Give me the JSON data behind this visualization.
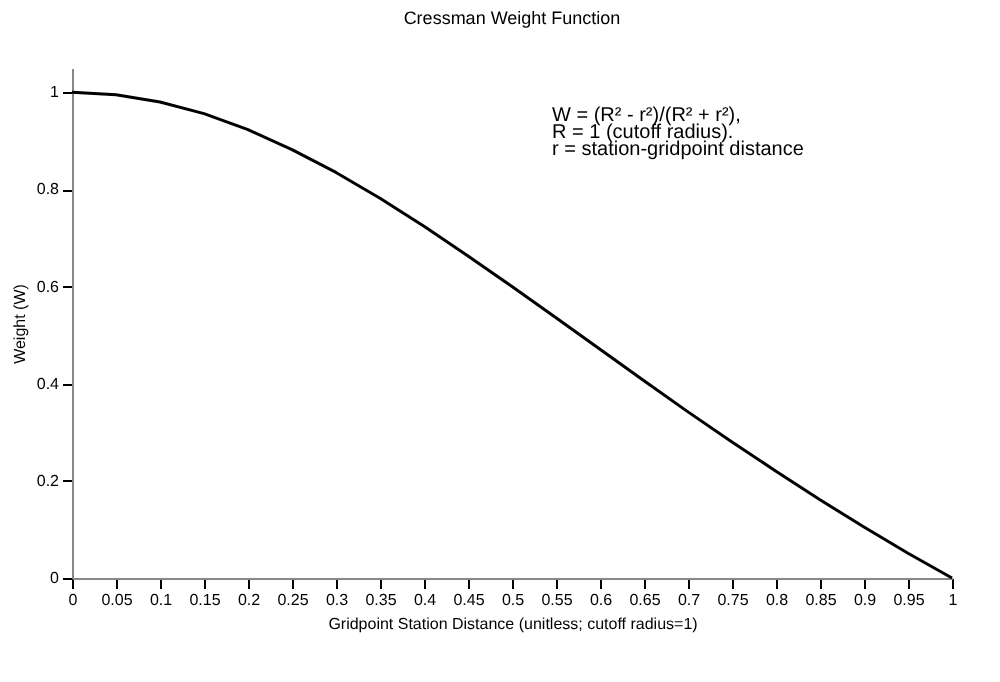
{
  "chart_data": {
    "type": "line",
    "title": "Cressman Weight Function",
    "xlabel": "Gridpoint Station Distance (unitless; cutoff radius=1)",
    "ylabel": "Weight (W)",
    "annotations": [
      "W = (R² - r²)/(R² + r²),",
      "R = 1 (cutoff radius).",
      "r = station-gridpoint distance"
    ],
    "x": [
      0,
      0.05,
      0.1,
      0.15,
      0.2,
      0.25,
      0.3,
      0.35,
      0.4,
      0.45,
      0.5,
      0.55,
      0.6,
      0.65,
      0.7,
      0.75,
      0.8,
      0.85,
      0.9,
      0.95,
      1
    ],
    "series": [
      {
        "color": "#000000",
        "values": [
          1,
          0.995,
          0.98,
          0.956,
          0.923,
          0.882,
          0.835,
          0.782,
          0.724,
          0.663,
          0.6,
          0.536,
          0.471,
          0.406,
          0.342,
          0.28,
          0.22,
          0.161,
          0.105,
          0.051,
          0
        ]
      }
    ],
    "xlim": [
      0,
      1
    ],
    "xticks": [
      0,
      0.05,
      0.1,
      0.15,
      0.2,
      0.25,
      0.3,
      0.35,
      0.4,
      0.45,
      0.5,
      0.55,
      0.6,
      0.65,
      0.7,
      0.75,
      0.8,
      0.85,
      0.9,
      0.95,
      1
    ],
    "ylim": [
      0,
      1.05
    ],
    "yticks": [
      0,
      0.2,
      0.4,
      0.6,
      0.8,
      1
    ],
    "grid": false,
    "marker": "none",
    "line_style": "solid"
  }
}
